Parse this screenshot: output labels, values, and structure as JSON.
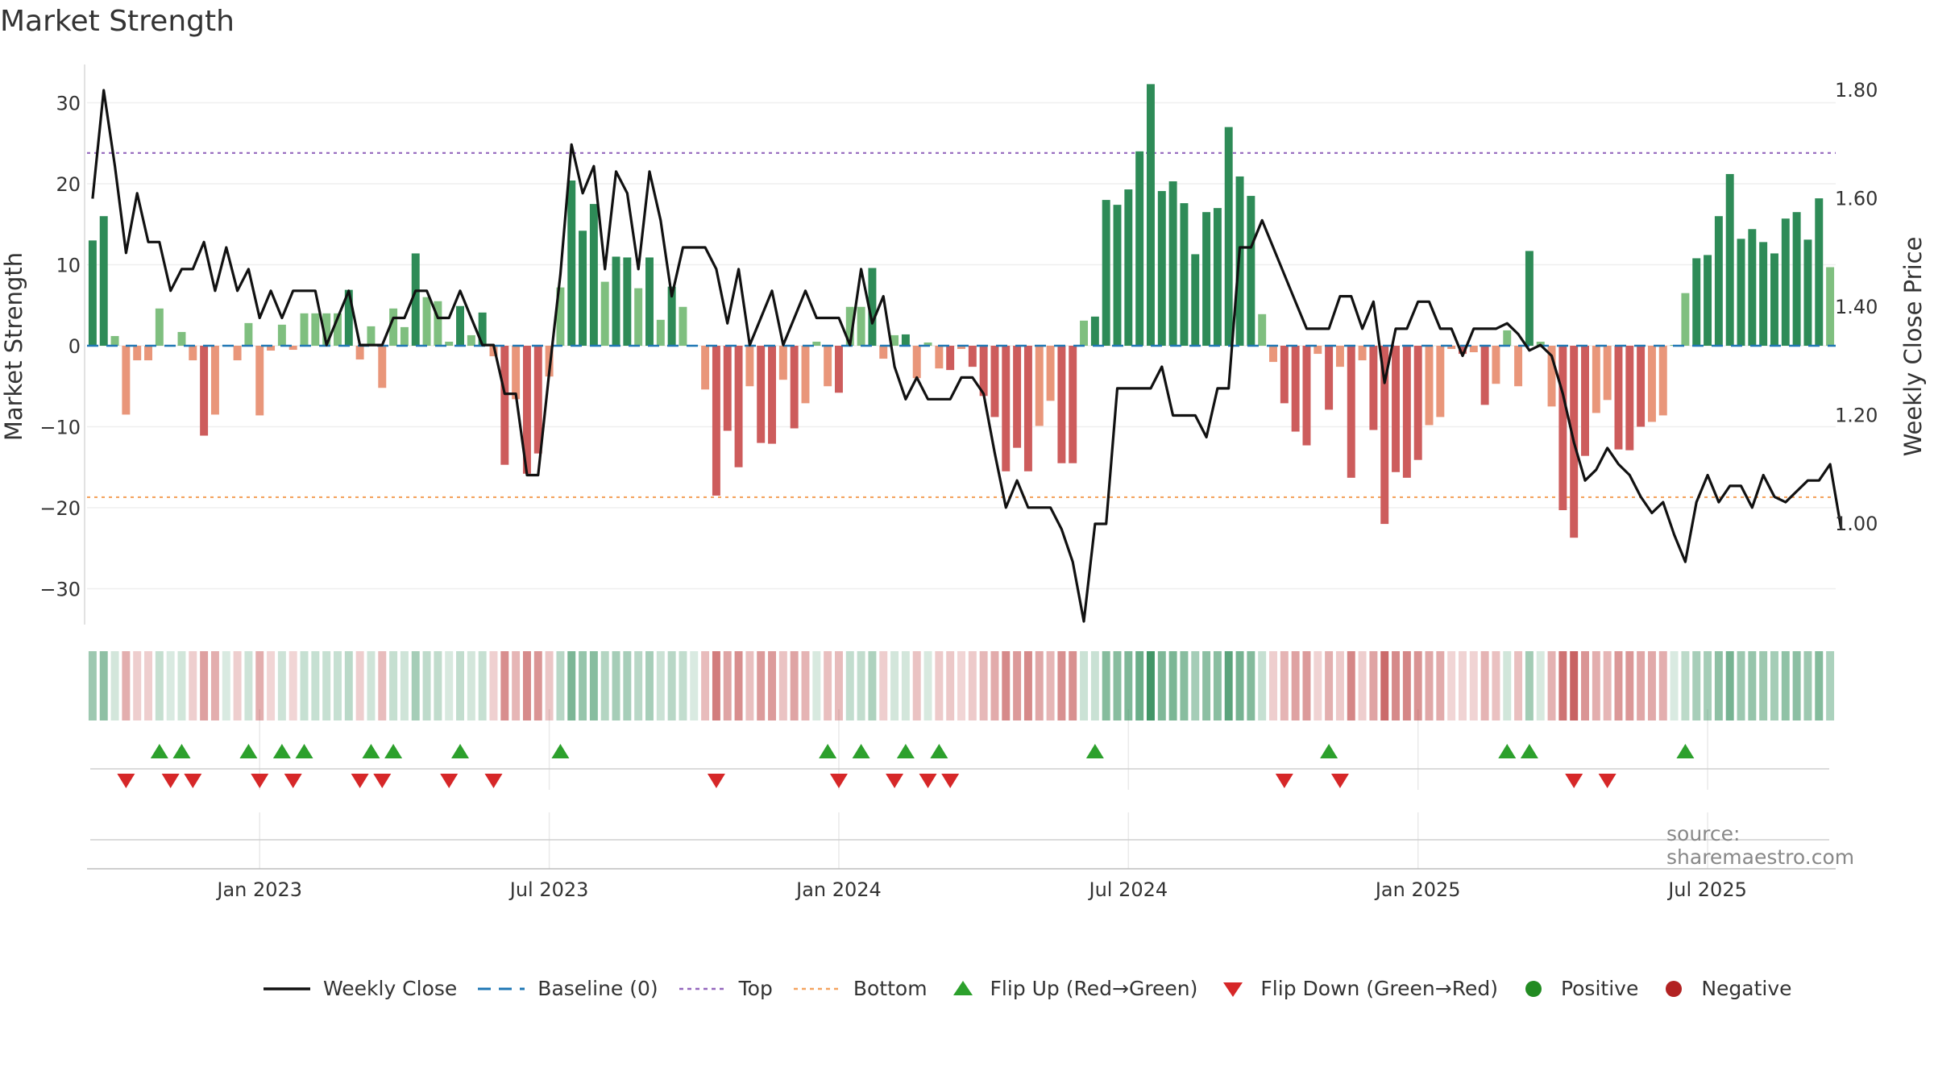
{
  "title": "Market Strength",
  "source": "source: sharemaestro.com",
  "colors": {
    "pos_dark": "#2e8b57",
    "pos_light": "#7fbf7f",
    "neg_dark": "#cd5c5c",
    "neg_light": "#e9967a",
    "close": "#111111",
    "baseline": "#1f77b4",
    "top": "#9467bd",
    "bottom": "#f4a460",
    "flip_up": "#2ca02c",
    "flip_down": "#d62728",
    "positive_dot": "#228b22",
    "negative_dot": "#b22222"
  },
  "legend": [
    {
      "key": "close",
      "label": "Weekly Close",
      "icon": "line-solid-icon"
    },
    {
      "key": "baseline",
      "label": "Baseline (0)",
      "icon": "line-dashed-icon"
    },
    {
      "key": "top",
      "label": "Top",
      "icon": "line-dotted-icon"
    },
    {
      "key": "bottom",
      "label": "Bottom",
      "icon": "line-dotted-icon"
    },
    {
      "key": "flip_up",
      "label": "Flip Up (Red→Green)",
      "icon": "triangle-up-icon"
    },
    {
      "key": "flip_down",
      "label": "Flip Down (Green→Red)",
      "icon": "triangle-down-icon"
    },
    {
      "key": "positive_dot",
      "label": "Positive",
      "icon": "dot-icon"
    },
    {
      "key": "negative_dot",
      "label": "Negative",
      "icon": "dot-icon"
    }
  ],
  "chart_data": {
    "type": "bar",
    "title": "Market Strength",
    "ylabel": "Market Strength",
    "y2label": "Weekly Close Price",
    "ylim": [
      -35,
      35
    ],
    "y2lim": [
      0.84,
      1.87
    ],
    "yticks": [
      30,
      20,
      10,
      0,
      -10,
      -20,
      -30
    ],
    "yticklabels": [
      "30",
      "20",
      "10",
      "0",
      "−10",
      "−20",
      "−30"
    ],
    "y2ticks": [
      1.8,
      1.6,
      1.4,
      1.2,
      1.0
    ],
    "y2ticklabels": [
      "1.80",
      "1.60",
      "1.40",
      "1.20",
      "1.00"
    ],
    "xticks": [
      15,
      41,
      67,
      93,
      119,
      145
    ],
    "xticklabels": [
      "Jan 2023",
      "Jul 2023",
      "Jan 2024",
      "Jul 2024",
      "Jan 2025",
      "Jul 2025"
    ],
    "baseline": 0,
    "top_line": 23.8,
    "bottom_line": -18.7,
    "strength": [
      13,
      16,
      1.2,
      -8.5,
      -1.8,
      -1.8,
      4.6,
      0,
      1.7,
      -1.8,
      -11.1,
      -8.5,
      0,
      -1.8,
      2.8,
      -8.6,
      -0.6,
      2.6,
      -0.5,
      4,
      4,
      4,
      4,
      6.9,
      -1.7,
      2.4,
      -5.2,
      4.6,
      2.3,
      11.4,
      6,
      5.5,
      0.5,
      4.9,
      1.3,
      4.1,
      -1.3,
      -14.7,
      -6.6,
      -15.8,
      -13.3,
      -3.8,
      7.2,
      20.4,
      14.2,
      17.5,
      7.9,
      11,
      10.9,
      7.1,
      10.9,
      3.2,
      7.3,
      4.8,
      0,
      -5.4,
      -18.5,
      -10.5,
      -15,
      -5,
      -12,
      -12.1,
      -4.2,
      -10.2,
      -7.1,
      0.5,
      -5,
      -5.8,
      4.8,
      4.8,
      9.6,
      -1.6,
      1.3,
      1.4,
      -4,
      0.4,
      -2.8,
      -3,
      -0.4,
      -2.6,
      -6.2,
      -8.8,
      -15.5,
      -12.6,
      -15.5,
      -9.9,
      -6.8,
      -14.5,
      -14.5,
      3.1,
      3.6,
      18,
      17.4,
      19.3,
      24,
      32.3,
      19.1,
      20.3,
      17.6,
      11.3,
      16.5,
      17,
      27,
      20.9,
      18.5,
      3.9,
      -2,
      -7.1,
      -10.6,
      -12.3,
      -1,
      -7.9,
      -2.6,
      -16.3,
      -1.8,
      -10.4,
      -22,
      -15.6,
      -16.3,
      -14.1,
      -9.8,
      -8.8,
      -0.4,
      -1,
      -0.8,
      -7.3,
      -4.7,
      1.9,
      -5,
      11.7,
      0.5,
      -7.5,
      -20.3,
      -23.7,
      -13.6,
      -8.3,
      -6.7,
      -12.8,
      -12.9,
      -10,
      -9.4,
      -8.6,
      0,
      6.5,
      10.8,
      11.2,
      16,
      21.2,
      13.2,
      14.4,
      12.8,
      11.4,
      15.7,
      16.5,
      13.1,
      18.2,
      9.7
    ],
    "close": [
      1.6,
      1.8,
      1.66,
      1.5,
      1.61,
      1.52,
      1.52,
      1.43,
      1.47,
      1.47,
      1.52,
      1.43,
      1.51,
      1.43,
      1.47,
      1.38,
      1.43,
      1.38,
      1.43,
      1.43,
      1.43,
      1.33,
      1.38,
      1.43,
      1.33,
      1.33,
      1.33,
      1.38,
      1.38,
      1.43,
      1.43,
      1.38,
      1.38,
      1.43,
      1.38,
      1.33,
      1.33,
      1.24,
      1.24,
      1.09,
      1.09,
      1.28,
      1.46,
      1.7,
      1.61,
      1.66,
      1.47,
      1.65,
      1.61,
      1.47,
      1.65,
      1.56,
      1.42,
      1.51,
      1.51,
      1.51,
      1.47,
      1.37,
      1.47,
      1.33,
      1.38,
      1.43,
      1.33,
      1.38,
      1.43,
      1.38,
      1.38,
      1.38,
      1.33,
      1.47,
      1.37,
      1.42,
      1.29,
      1.23,
      1.27,
      1.23,
      1.23,
      1.23,
      1.27,
      1.27,
      1.24,
      1.13,
      1.03,
      1.08,
      1.03,
      1.03,
      1.03,
      0.99,
      0.93,
      0.82,
      1,
      1,
      1.25,
      1.25,
      1.25,
      1.25,
      1.29,
      1.2,
      1.2,
      1.2,
      1.16,
      1.25,
      1.25,
      1.51,
      1.51,
      1.56,
      1.51,
      1.46,
      1.41,
      1.36,
      1.36,
      1.36,
      1.42,
      1.42,
      1.36,
      1.41,
      1.26,
      1.36,
      1.36,
      1.41,
      1.41,
      1.36,
      1.36,
      1.31,
      1.36,
      1.36,
      1.36,
      1.37,
      1.35,
      1.32,
      1.33,
      1.31,
      1.24,
      1.15,
      1.08,
      1.1,
      1.14,
      1.11,
      1.09,
      1.05,
      1.02,
      1.04,
      0.98,
      0.93,
      1.04,
      1.09,
      1.04,
      1.07,
      1.07,
      1.03,
      1.09,
      1.05,
      1.04,
      1.06,
      1.08,
      1.08,
      1.11,
      0.99
    ],
    "flip_up": [
      6,
      8,
      14,
      17,
      19,
      25,
      27,
      33,
      42,
      66,
      69,
      73,
      76,
      90,
      111,
      127,
      129,
      143
    ],
    "flip_down": [
      3,
      7,
      9,
      15,
      18,
      24,
      26,
      32,
      36,
      56,
      67,
      72,
      75,
      77,
      107,
      112,
      133,
      136
    ]
  }
}
